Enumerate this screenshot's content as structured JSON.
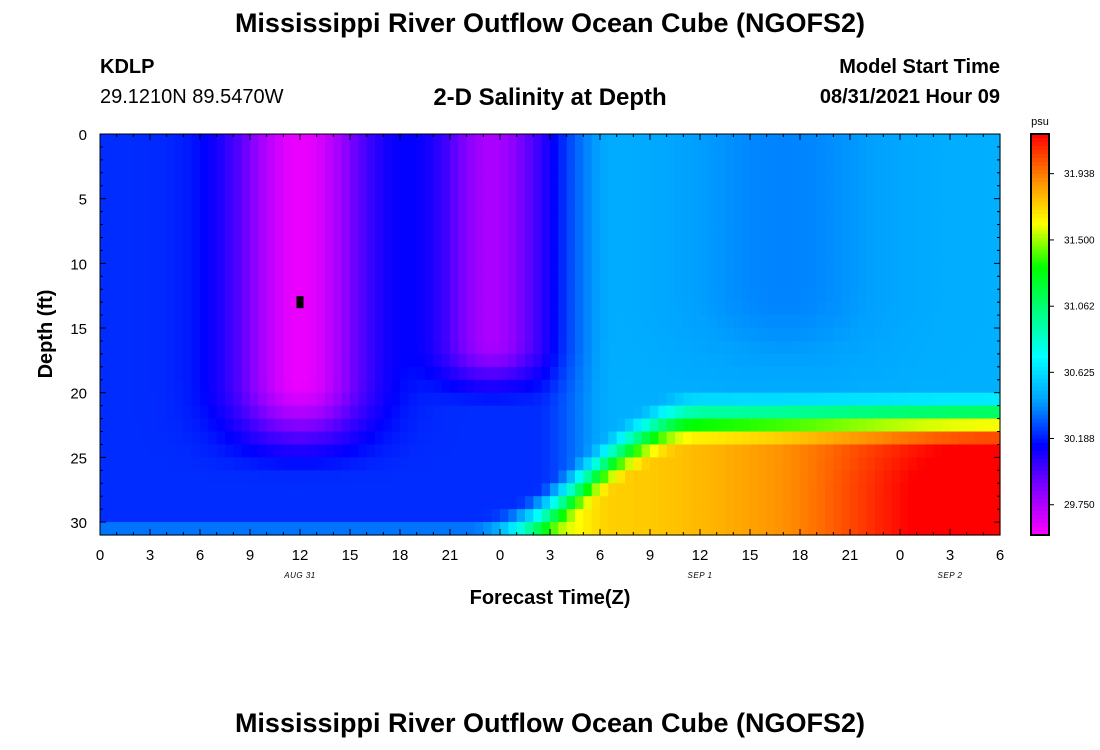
{
  "header": {
    "title": "Mississippi River Outflow Ocean Cube (NGOFS2)",
    "station_id": "KDLP",
    "station_coords": "29.1210N  89.5470W",
    "subtitle": "2-D Salinity at Depth",
    "model_start_label": "Model Start Time",
    "model_start_value": "08/31/2021 Hour 09"
  },
  "footer": {
    "title": "Mississippi River Outflow Ocean Cube (NGOFS2)"
  },
  "chart_data": {
    "type": "heatmap",
    "title": "2-D Salinity at Depth",
    "xlabel": "Forecast Time(Z)",
    "ylabel": "Depth (ft)",
    "x_range": [
      0,
      54
    ],
    "y_range": [
      0,
      31
    ],
    "y_inverted": true,
    "x_tick_values": [
      0,
      3,
      6,
      9,
      12,
      15,
      18,
      21,
      24,
      27,
      30,
      33,
      36,
      39,
      42,
      45,
      48,
      51,
      54
    ],
    "x_tick_labels": [
      "0",
      "3",
      "6",
      "9",
      "12",
      "15",
      "18",
      "21",
      "0",
      "3",
      "6",
      "9",
      "12",
      "15",
      "18",
      "21",
      "0",
      "3",
      "6"
    ],
    "date_labels": [
      {
        "x": 12,
        "text": "AUG 31"
      },
      {
        "x": 36,
        "text": "SEP 1"
      },
      {
        "x": 51,
        "text": "SEP 2"
      }
    ],
    "y_ticks": [
      0,
      5,
      10,
      15,
      20,
      25,
      30
    ],
    "colorbar": {
      "unit": "psu",
      "range": [
        29.55,
        32.2
      ],
      "ticks": [
        31.938,
        31.5,
        31.062,
        30.625,
        30.188,
        29.75
      ],
      "tick_labels": [
        "31.938",
        "31.500",
        "31.062",
        "30.625",
        "30.188",
        "29.750"
      ],
      "colormap": [
        "#ff00ff",
        "#8800ff",
        "#0000ff",
        "#00a0ff",
        "#00ffff",
        "#00ff80",
        "#00ff00",
        "#ffff00",
        "#ff8800",
        "#ff0000"
      ]
    },
    "marker": {
      "x": 12,
      "y": 13
    },
    "approx_salinity_field": {
      "description_of_values": "salinity in psu by time",
      "features": [
        {
          "x_center": 12,
          "min_value": 29.6,
          "depth_span": [
            0,
            27
          ]
        },
        {
          "x_center": 24,
          "min_value": 29.75,
          "depth_span": [
            0,
            21
          ]
        },
        {
          "x_center": 42,
          "surface_value": 30.45,
          "bottom_value": 31.9
        }
      ]
    }
  }
}
